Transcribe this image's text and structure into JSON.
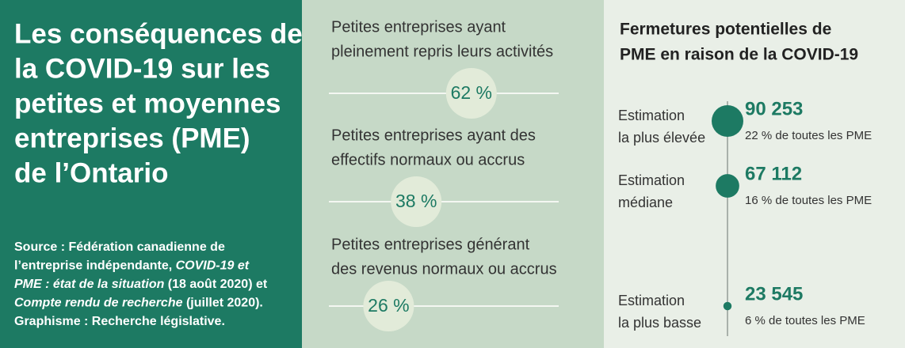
{
  "header": {
    "title_lines": [
      "Les conséquences de",
      "la COVID-19 sur les",
      "petites et moyennes",
      "entreprises (PME)",
      "de l’Ontario"
    ]
  },
  "source_lines": [
    [
      {
        "text": "Source : Fédération canadienne de",
        "italic": false
      }
    ],
    [
      {
        "text": "l’entreprise indépendante, ",
        "italic": false
      },
      {
        "text": "COVID-19 et",
        "italic": true
      }
    ],
    [
      {
        "text": "PME : état de la situation",
        "italic": true
      },
      {
        "text": " (18 août 2020) et",
        "italic": false
      }
    ],
    [
      {
        "text": "Compte rendu de recherche",
        "italic": true
      },
      {
        "text": " (juillet 2020).",
        "italic": false
      }
    ],
    [
      {
        "text": "Graphisme : Recherche législative.",
        "italic": false
      }
    ]
  ],
  "indicators": [
    {
      "label_lines": [
        "Petites entreprises ayant",
        "pleinement repris leurs activités"
      ],
      "value": 62,
      "label": "62 %"
    },
    {
      "label_lines": [
        "Petites entreprises ayant des",
        "effectifs normaux ou accrus"
      ],
      "value": 38,
      "label": "38 %"
    },
    {
      "label_lines": [
        "Petites entreprises générant",
        "des revenus normaux ou accrus"
      ],
      "value": 26,
      "label": "26 %"
    }
  ],
  "closures": {
    "title_lines": [
      "Fermetures potentielles de",
      "PME en raison de la COVID-19"
    ],
    "estimates": [
      {
        "label_lines": [
          "Estimation",
          "la plus élevée"
        ],
        "value": 90253,
        "label": "90 253",
        "share": "22 % de toutes les PME"
      },
      {
        "label_lines": [
          "Estimation",
          "médiane"
        ],
        "value": 67112,
        "label": "67 112",
        "share": "16 % de toutes les PME"
      },
      {
        "label_lines": [
          "Estimation",
          "la plus basse"
        ],
        "value": 23545,
        "label": "23 545",
        "share": "6 % de toutes les PME"
      }
    ]
  }
}
